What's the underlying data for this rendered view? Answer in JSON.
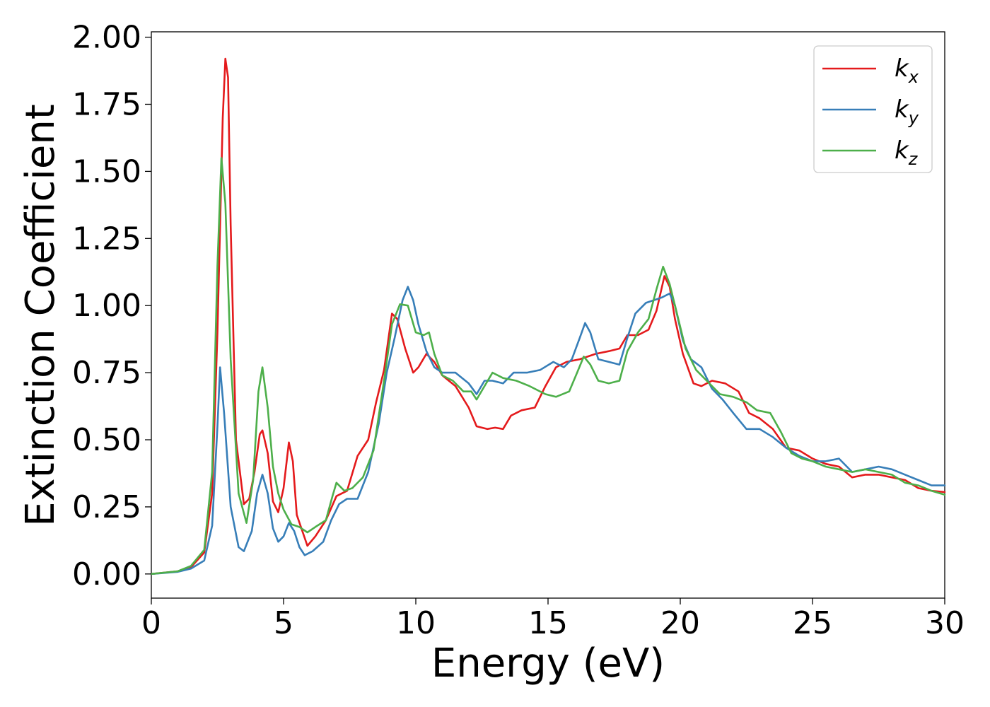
{
  "chart_data": {
    "type": "line",
    "title": "",
    "xlabel": "Energy (eV)",
    "ylabel": "Extinction Coefficient",
    "xlim": [
      0,
      30
    ],
    "ylim": [
      -0.09,
      2.02
    ],
    "xticks": [
      "0",
      "5",
      "10",
      "15",
      "20",
      "25",
      "30"
    ],
    "yticks": [
      "0.00",
      "0.25",
      "0.50",
      "0.75",
      "1.00",
      "1.25",
      "1.50",
      "1.75",
      "2.00"
    ],
    "grid": false,
    "legend_position": "top-right",
    "series": [
      {
        "name": "kx",
        "name_base": "k",
        "name_sub": "x",
        "color": "#e41a1c",
        "points": [
          [
            0,
            0
          ],
          [
            1.0,
            0.01
          ],
          [
            1.5,
            0.025
          ],
          [
            2.0,
            0.08
          ],
          [
            2.3,
            0.3
          ],
          [
            2.5,
            0.9
          ],
          [
            2.7,
            1.7
          ],
          [
            2.8,
            1.92
          ],
          [
            2.9,
            1.85
          ],
          [
            3.0,
            1.3
          ],
          [
            3.2,
            0.5
          ],
          [
            3.5,
            0.26
          ],
          [
            3.7,
            0.28
          ],
          [
            3.9,
            0.38
          ],
          [
            4.1,
            0.52
          ],
          [
            4.2,
            0.535
          ],
          [
            4.4,
            0.45
          ],
          [
            4.6,
            0.27
          ],
          [
            4.8,
            0.23
          ],
          [
            5.0,
            0.32
          ],
          [
            5.2,
            0.49
          ],
          [
            5.35,
            0.42
          ],
          [
            5.5,
            0.22
          ],
          [
            5.9,
            0.105
          ],
          [
            6.2,
            0.14
          ],
          [
            6.6,
            0.2
          ],
          [
            7.0,
            0.29
          ],
          [
            7.4,
            0.31
          ],
          [
            7.8,
            0.44
          ],
          [
            8.2,
            0.5
          ],
          [
            8.5,
            0.64
          ],
          [
            8.8,
            0.76
          ],
          [
            9.1,
            0.97
          ],
          [
            9.3,
            0.95
          ],
          [
            9.6,
            0.84
          ],
          [
            9.9,
            0.75
          ],
          [
            10.1,
            0.77
          ],
          [
            10.4,
            0.82
          ],
          [
            10.7,
            0.79
          ],
          [
            11.0,
            0.74
          ],
          [
            11.5,
            0.7
          ],
          [
            12.0,
            0.62
          ],
          [
            12.3,
            0.55
          ],
          [
            12.7,
            0.54
          ],
          [
            13.0,
            0.545
          ],
          [
            13.3,
            0.54
          ],
          [
            13.6,
            0.59
          ],
          [
            14.0,
            0.61
          ],
          [
            14.5,
            0.62
          ],
          [
            14.9,
            0.7
          ],
          [
            15.3,
            0.77
          ],
          [
            15.7,
            0.79
          ],
          [
            16.2,
            0.8
          ],
          [
            16.8,
            0.82
          ],
          [
            17.3,
            0.83
          ],
          [
            17.7,
            0.84
          ],
          [
            18.0,
            0.89
          ],
          [
            18.4,
            0.89
          ],
          [
            18.8,
            0.91
          ],
          [
            19.1,
            0.98
          ],
          [
            19.4,
            1.11
          ],
          [
            19.6,
            1.07
          ],
          [
            19.8,
            0.95
          ],
          [
            20.1,
            0.82
          ],
          [
            20.5,
            0.71
          ],
          [
            20.8,
            0.7
          ],
          [
            21.2,
            0.72
          ],
          [
            21.7,
            0.71
          ],
          [
            22.2,
            0.68
          ],
          [
            22.6,
            0.6
          ],
          [
            23.0,
            0.58
          ],
          [
            23.5,
            0.54
          ],
          [
            24.0,
            0.47
          ],
          [
            24.5,
            0.46
          ],
          [
            25.0,
            0.43
          ],
          [
            25.5,
            0.41
          ],
          [
            26.0,
            0.4
          ],
          [
            26.5,
            0.36
          ],
          [
            27.0,
            0.37
          ],
          [
            27.5,
            0.37
          ],
          [
            28.0,
            0.36
          ],
          [
            28.5,
            0.35
          ],
          [
            29.0,
            0.32
          ],
          [
            29.5,
            0.31
          ],
          [
            30,
            0.305
          ]
        ]
      },
      {
        "name": "ky",
        "name_base": "k",
        "name_sub": "y",
        "color": "#377eb8",
        "points": [
          [
            0,
            0
          ],
          [
            1.0,
            0.008
          ],
          [
            1.5,
            0.02
          ],
          [
            2.0,
            0.05
          ],
          [
            2.3,
            0.18
          ],
          [
            2.5,
            0.55
          ],
          [
            2.6,
            0.77
          ],
          [
            2.75,
            0.6
          ],
          [
            3.0,
            0.25
          ],
          [
            3.3,
            0.1
          ],
          [
            3.5,
            0.085
          ],
          [
            3.8,
            0.16
          ],
          [
            4.0,
            0.3
          ],
          [
            4.2,
            0.37
          ],
          [
            4.4,
            0.3
          ],
          [
            4.6,
            0.17
          ],
          [
            4.8,
            0.12
          ],
          [
            5.0,
            0.14
          ],
          [
            5.2,
            0.19
          ],
          [
            5.4,
            0.16
          ],
          [
            5.6,
            0.1
          ],
          [
            5.8,
            0.07
          ],
          [
            6.1,
            0.085
          ],
          [
            6.5,
            0.12
          ],
          [
            6.8,
            0.2
          ],
          [
            7.1,
            0.26
          ],
          [
            7.4,
            0.28
          ],
          [
            7.8,
            0.28
          ],
          [
            8.2,
            0.38
          ],
          [
            8.6,
            0.56
          ],
          [
            8.9,
            0.75
          ],
          [
            9.2,
            0.88
          ],
          [
            9.5,
            1.02
          ],
          [
            9.7,
            1.07
          ],
          [
            9.9,
            1.02
          ],
          [
            10.1,
            0.93
          ],
          [
            10.4,
            0.83
          ],
          [
            10.7,
            0.77
          ],
          [
            11.0,
            0.75
          ],
          [
            11.5,
            0.75
          ],
          [
            12.0,
            0.71
          ],
          [
            12.3,
            0.67
          ],
          [
            12.6,
            0.72
          ],
          [
            12.9,
            0.72
          ],
          [
            13.3,
            0.71
          ],
          [
            13.7,
            0.75
          ],
          [
            14.2,
            0.75
          ],
          [
            14.7,
            0.76
          ],
          [
            15.2,
            0.79
          ],
          [
            15.6,
            0.77
          ],
          [
            15.9,
            0.8
          ],
          [
            16.2,
            0.88
          ],
          [
            16.4,
            0.935
          ],
          [
            16.6,
            0.9
          ],
          [
            16.9,
            0.8
          ],
          [
            17.3,
            0.79
          ],
          [
            17.7,
            0.78
          ],
          [
            18.0,
            0.88
          ],
          [
            18.3,
            0.97
          ],
          [
            18.7,
            1.01
          ],
          [
            19.0,
            1.02
          ],
          [
            19.3,
            1.03
          ],
          [
            19.6,
            1.045
          ],
          [
            19.8,
            1.0
          ],
          [
            20.1,
            0.87
          ],
          [
            20.4,
            0.8
          ],
          [
            20.8,
            0.77
          ],
          [
            21.2,
            0.69
          ],
          [
            21.6,
            0.65
          ],
          [
            22.0,
            0.6
          ],
          [
            22.5,
            0.54
          ],
          [
            23.0,
            0.54
          ],
          [
            23.5,
            0.51
          ],
          [
            24.0,
            0.47
          ],
          [
            24.5,
            0.44
          ],
          [
            25.0,
            0.42
          ],
          [
            25.5,
            0.42
          ],
          [
            26.0,
            0.43
          ],
          [
            26.5,
            0.38
          ],
          [
            27.0,
            0.39
          ],
          [
            27.5,
            0.4
          ],
          [
            28.0,
            0.39
          ],
          [
            28.5,
            0.37
          ],
          [
            29.0,
            0.35
          ],
          [
            29.5,
            0.33
          ],
          [
            30,
            0.33
          ]
        ]
      },
      {
        "name": "kz",
        "name_base": "k",
        "name_sub": "z",
        "color": "#4daf4a",
        "points": [
          [
            0,
            0
          ],
          [
            1.0,
            0.01
          ],
          [
            1.5,
            0.03
          ],
          [
            2.0,
            0.09
          ],
          [
            2.3,
            0.38
          ],
          [
            2.5,
            1.15
          ],
          [
            2.65,
            1.55
          ],
          [
            2.8,
            1.38
          ],
          [
            3.0,
            0.8
          ],
          [
            3.3,
            0.3
          ],
          [
            3.6,
            0.19
          ],
          [
            3.85,
            0.35
          ],
          [
            4.05,
            0.68
          ],
          [
            4.2,
            0.77
          ],
          [
            4.4,
            0.62
          ],
          [
            4.6,
            0.4
          ],
          [
            4.8,
            0.3
          ],
          [
            5.0,
            0.24
          ],
          [
            5.3,
            0.185
          ],
          [
            5.6,
            0.175
          ],
          [
            5.9,
            0.155
          ],
          [
            6.2,
            0.175
          ],
          [
            6.6,
            0.2
          ],
          [
            6.85,
            0.29
          ],
          [
            7.0,
            0.34
          ],
          [
            7.3,
            0.31
          ],
          [
            7.6,
            0.32
          ],
          [
            8.0,
            0.36
          ],
          [
            8.4,
            0.46
          ],
          [
            8.8,
            0.72
          ],
          [
            9.1,
            0.93
          ],
          [
            9.4,
            1.005
          ],
          [
            9.7,
            1.0
          ],
          [
            10.0,
            0.9
          ],
          [
            10.3,
            0.89
          ],
          [
            10.5,
            0.9
          ],
          [
            10.7,
            0.82
          ],
          [
            11.0,
            0.74
          ],
          [
            11.4,
            0.72
          ],
          [
            11.8,
            0.68
          ],
          [
            12.1,
            0.68
          ],
          [
            12.3,
            0.65
          ],
          [
            12.6,
            0.7
          ],
          [
            12.9,
            0.75
          ],
          [
            13.3,
            0.73
          ],
          [
            13.8,
            0.72
          ],
          [
            14.3,
            0.7
          ],
          [
            14.9,
            0.67
          ],
          [
            15.3,
            0.66
          ],
          [
            15.8,
            0.68
          ],
          [
            16.1,
            0.75
          ],
          [
            16.35,
            0.81
          ],
          [
            16.6,
            0.78
          ],
          [
            16.9,
            0.72
          ],
          [
            17.3,
            0.71
          ],
          [
            17.7,
            0.72
          ],
          [
            18.0,
            0.83
          ],
          [
            18.4,
            0.9
          ],
          [
            18.8,
            0.95
          ],
          [
            19.1,
            1.06
          ],
          [
            19.35,
            1.145
          ],
          [
            19.6,
            1.08
          ],
          [
            19.9,
            0.96
          ],
          [
            20.2,
            0.84
          ],
          [
            20.6,
            0.76
          ],
          [
            21.0,
            0.72
          ],
          [
            21.5,
            0.67
          ],
          [
            22.0,
            0.66
          ],
          [
            22.5,
            0.64
          ],
          [
            22.9,
            0.61
          ],
          [
            23.4,
            0.6
          ],
          [
            23.8,
            0.53
          ],
          [
            24.2,
            0.45
          ],
          [
            24.6,
            0.43
          ],
          [
            25.0,
            0.42
          ],
          [
            25.5,
            0.4
          ],
          [
            26.0,
            0.39
          ],
          [
            26.5,
            0.38
          ],
          [
            27.0,
            0.39
          ],
          [
            27.5,
            0.38
          ],
          [
            28.0,
            0.37
          ],
          [
            28.5,
            0.34
          ],
          [
            29.0,
            0.33
          ],
          [
            29.5,
            0.31
          ],
          [
            30,
            0.295
          ]
        ]
      }
    ]
  }
}
